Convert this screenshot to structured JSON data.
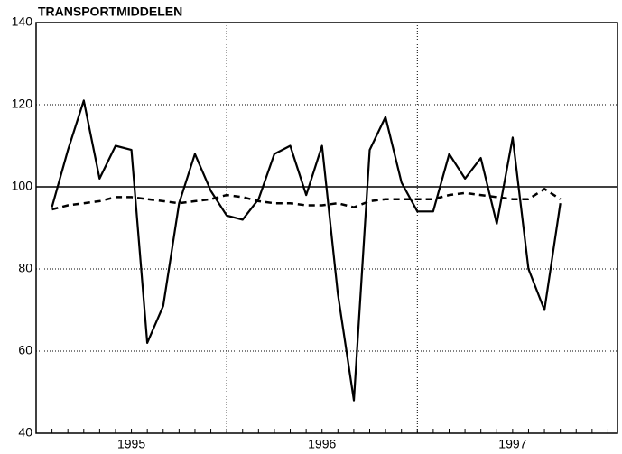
{
  "chart_data": {
    "type": "line",
    "title": "TRANSPORTMIDDELEN",
    "x": [
      1995.083,
      1995.167,
      1995.25,
      1995.333,
      1995.417,
      1995.5,
      1995.583,
      1995.667,
      1995.75,
      1995.833,
      1995.917,
      1996,
      1996.083,
      1996.167,
      1996.25,
      1996.333,
      1996.417,
      1996.5,
      1996.583,
      1996.667,
      1996.75,
      1996.833,
      1996.917,
      1997,
      1997.083,
      1997.167,
      1997.25,
      1997.333,
      1997.417,
      1997.5,
      1997.583,
      1997.667,
      1997.75
    ],
    "series": [
      {
        "color": "#000",
        "dash": false,
        "values": [
          95,
          109,
          121,
          102,
          110,
          109,
          62,
          71,
          96,
          108,
          99,
          93,
          92,
          97,
          108,
          110,
          98,
          110,
          74,
          48,
          109,
          117,
          101,
          94,
          94,
          108,
          102,
          107,
          91,
          112,
          80,
          70,
          96
        ]
      },
      {
        "color": "#000",
        "dash": true,
        "values": [
          94.5,
          95.5,
          96,
          96.5,
          97.5,
          97.5,
          97,
          96.5,
          96,
          96.5,
          97,
          98,
          97.5,
          96.5,
          96,
          96,
          95.5,
          95.5,
          96,
          95,
          96.5,
          97,
          97,
          97,
          97,
          98,
          98.5,
          98,
          97.5,
          97,
          97,
          99.5,
          97
        ]
      }
    ],
    "xlim": [
      1995,
      1998.05
    ],
    "xticks": [
      {
        "value": 1995.5,
        "label": "1995"
      },
      {
        "value": 1996.5,
        "label": "1996"
      },
      {
        "value": 1997.5,
        "label": "1997"
      }
    ],
    "xgrid": [
      1996,
      1997
    ],
    "ylim": [
      40,
      140
    ],
    "yticks": [
      40,
      60,
      80,
      100,
      120,
      140
    ],
    "hline": 100,
    "grid": true
  }
}
